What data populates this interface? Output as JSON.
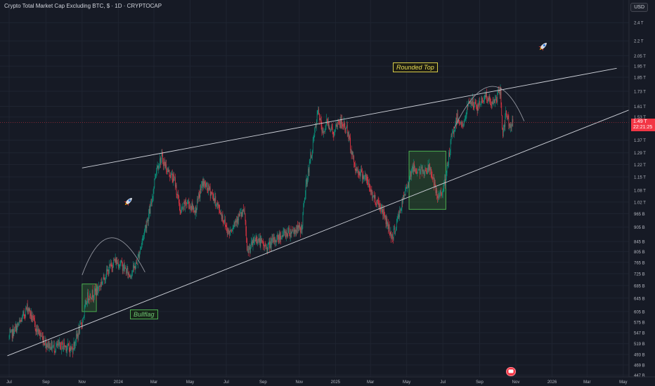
{
  "header": {
    "title": "Crypto Total Market Cap Excluding BTC, $ · 1D · CRYPTOCAP",
    "currency": "USD"
  },
  "price_tag": {
    "value": "1.49 T",
    "countdown": "22:21:25",
    "color": "#f23645"
  },
  "annotations": {
    "rounded_top": "Rounded Top",
    "bullflag": "Bullflag"
  },
  "icons": [
    "rocket-icon",
    "rocket-icon",
    "news-icon"
  ],
  "colors": {
    "background": "#161a25",
    "up": "#089981",
    "down": "#f23645",
    "trendline": "#d1d4dc",
    "box_fill": "#2e5e30"
  },
  "chart_data": {
    "type": "candlestick",
    "y_scale": "log",
    "y_tick_labels": [
      "2.4 T",
      "2.2 T",
      "2.05 T",
      "1.95 T",
      "1.85 T",
      "1.73 T",
      "1.61 T",
      "1.53 T",
      "1.37 T",
      "1.29 T",
      "1.22 T",
      "1.15 T",
      "1.08 T",
      "1.02 T",
      "965 B",
      "905 B",
      "845 B",
      "805 B",
      "765 B",
      "725 B",
      "685 B",
      "645 B",
      "605 B",
      "575 B",
      "547 B",
      "519 B",
      "493 B",
      "469 B",
      "447 B"
    ],
    "y_tick_values": [
      2.4,
      2.2,
      2.05,
      1.95,
      1.85,
      1.73,
      1.61,
      1.53,
      1.37,
      1.29,
      1.22,
      1.15,
      1.08,
      1.02,
      0.965,
      0.905,
      0.845,
      0.805,
      0.765,
      0.725,
      0.685,
      0.645,
      0.605,
      0.575,
      0.547,
      0.519,
      0.493,
      0.469,
      0.447
    ],
    "x_tick_labels": [
      "Jul",
      "Sep",
      "Nov",
      "2024",
      "Mar",
      "May",
      "Jul",
      "Sep",
      "Nov",
      "2025",
      "Mar",
      "May",
      "Jul",
      "Sep",
      "Nov",
      "2026",
      "Mar",
      "May"
    ],
    "price_path": [
      {
        "date": "2023-07-01",
        "value": 0.535
      },
      {
        "date": "2023-07-20",
        "value": 0.575
      },
      {
        "date": "2023-08-01",
        "value": 0.62
      },
      {
        "date": "2023-08-15",
        "value": 0.56
      },
      {
        "date": "2023-09-01",
        "value": 0.52
      },
      {
        "date": "2023-09-15",
        "value": 0.51
      },
      {
        "date": "2023-10-01",
        "value": 0.515
      },
      {
        "date": "2023-10-15",
        "value": 0.505
      },
      {
        "date": "2023-11-01",
        "value": 0.575
      },
      {
        "date": "2023-11-10",
        "value": 0.65
      },
      {
        "date": "2023-11-25",
        "value": 0.665
      },
      {
        "date": "2023-12-10",
        "value": 0.72
      },
      {
        "date": "2023-12-25",
        "value": 0.77
      },
      {
        "date": "2024-01-05",
        "value": 0.76
      },
      {
        "date": "2024-01-20",
        "value": 0.72
      },
      {
        "date": "2024-02-01",
        "value": 0.76
      },
      {
        "date": "2024-02-15",
        "value": 0.9
      },
      {
        "date": "2024-02-25",
        "value": 1.0
      },
      {
        "date": "2024-03-05",
        "value": 1.2
      },
      {
        "date": "2024-03-14",
        "value": 1.26
      },
      {
        "date": "2024-03-25",
        "value": 1.18
      },
      {
        "date": "2024-04-05",
        "value": 1.13
      },
      {
        "date": "2024-04-15",
        "value": 0.97
      },
      {
        "date": "2024-04-25",
        "value": 1.02
      },
      {
        "date": "2024-05-10",
        "value": 0.98
      },
      {
        "date": "2024-05-22",
        "value": 1.12
      },
      {
        "date": "2024-06-05",
        "value": 1.07
      },
      {
        "date": "2024-06-20",
        "value": 0.98
      },
      {
        "date": "2024-07-05",
        "value": 0.88
      },
      {
        "date": "2024-07-20",
        "value": 0.95
      },
      {
        "date": "2024-08-01",
        "value": 0.97
      },
      {
        "date": "2024-08-05",
        "value": 0.8
      },
      {
        "date": "2024-08-20",
        "value": 0.86
      },
      {
        "date": "2024-09-06",
        "value": 0.82
      },
      {
        "date": "2024-09-20",
        "value": 0.85
      },
      {
        "date": "2024-10-01",
        "value": 0.87
      },
      {
        "date": "2024-10-20",
        "value": 0.89
      },
      {
        "date": "2024-11-05",
        "value": 0.9
      },
      {
        "date": "2024-11-12",
        "value": 1.1
      },
      {
        "date": "2024-11-22",
        "value": 1.3
      },
      {
        "date": "2024-12-03",
        "value": 1.58
      },
      {
        "date": "2024-12-10",
        "value": 1.41
      },
      {
        "date": "2024-12-18",
        "value": 1.5
      },
      {
        "date": "2024-12-30",
        "value": 1.41
      },
      {
        "date": "2025-01-06",
        "value": 1.5
      },
      {
        "date": "2025-01-20",
        "value": 1.45
      },
      {
        "date": "2025-02-03",
        "value": 1.2
      },
      {
        "date": "2025-02-20",
        "value": 1.15
      },
      {
        "date": "2025-03-05",
        "value": 1.05
      },
      {
        "date": "2025-03-20",
        "value": 0.99
      },
      {
        "date": "2025-04-07",
        "value": 0.86
      },
      {
        "date": "2025-04-20",
        "value": 0.98
      },
      {
        "date": "2025-05-10",
        "value": 1.2
      },
      {
        "date": "2025-05-25",
        "value": 1.18
      },
      {
        "date": "2025-06-10",
        "value": 1.2
      },
      {
        "date": "2025-06-22",
        "value": 1.03
      },
      {
        "date": "2025-07-05",
        "value": 1.12
      },
      {
        "date": "2025-07-15",
        "value": 1.37
      },
      {
        "date": "2025-07-25",
        "value": 1.53
      },
      {
        "date": "2025-08-05",
        "value": 1.46
      },
      {
        "date": "2025-08-14",
        "value": 1.66
      },
      {
        "date": "2025-08-28",
        "value": 1.6
      },
      {
        "date": "2025-09-10",
        "value": 1.7
      },
      {
        "date": "2025-09-22",
        "value": 1.62
      },
      {
        "date": "2025-10-06",
        "value": 1.73
      },
      {
        "date": "2025-10-10",
        "value": 1.4
      },
      {
        "date": "2025-10-15",
        "value": 1.55
      },
      {
        "date": "2025-10-22",
        "value": 1.47
      },
      {
        "date": "2025-10-27",
        "value": 1.49
      }
    ],
    "trendlines": [
      {
        "name": "upper",
        "points": [
          {
            "date": "2023-11-01",
            "value": 1.2
          },
          {
            "date": "2026-04-20",
            "value": 1.93
          }
        ]
      },
      {
        "name": "lower",
        "points": [
          {
            "date": "2023-06-28",
            "value": 0.49
          },
          {
            "date": "2026-06-01",
            "value": 1.62
          }
        ]
      }
    ],
    "arcs": [
      {
        "from": {
          "date": "2023-11-01",
          "value": 0.72
        },
        "to": {
          "date": "2024-02-15",
          "value": 0.73
        },
        "peak": {
          "date": "2023-12-20",
          "value": 0.86
        }
      },
      {
        "from": {
          "date": "2025-07-20",
          "value": 1.45
        },
        "to": {
          "date": "2025-11-15",
          "value": 1.5
        },
        "peak": {
          "date": "2025-09-20",
          "value": 1.77
        }
      }
    ],
    "boxes": [
      {
        "from": {
          "date": "2023-11-01",
          "value": 0.69
        },
        "to": {
          "date": "2023-11-25",
          "value": 0.605
        }
      },
      {
        "from": {
          "date": "2025-05-05",
          "value": 1.3
        },
        "to": {
          "date": "2025-07-06",
          "value": 0.985
        }
      }
    ],
    "last_value": 1.49
  }
}
